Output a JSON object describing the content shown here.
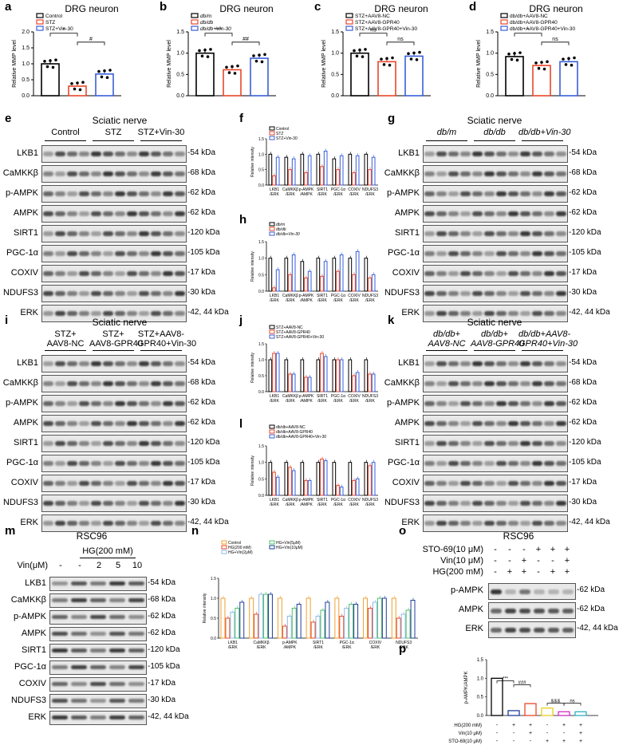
{
  "panels": {
    "a": {
      "label": "a",
      "title": "DRG neuron",
      "ylabel": "Relative MMP level",
      "legend": [
        "Control",
        "STZ",
        "STZ+Vin-30"
      ],
      "sig": [
        "*",
        "#"
      ],
      "means": [
        1.0,
        0.3,
        0.68
      ],
      "ylim": [
        0,
        2.0
      ],
      "yticks": [
        "0.0",
        "0.5",
        "1.0",
        "1.5",
        "2.0"
      ]
    },
    "b": {
      "label": "b",
      "title": "DRG neuron",
      "ylabel": "Relative MMP level",
      "legend": [
        "db/m",
        "db/db",
        "db/db+Vin-30"
      ],
      "sig": [
        "***",
        "##"
      ],
      "means": [
        1.0,
        0.61,
        0.88
      ],
      "ylim": [
        0,
        1.5
      ],
      "yticks": [
        "0.0",
        "0.5",
        "1.0",
        "1.5"
      ]
    },
    "c": {
      "label": "c",
      "title": "DRG neuron",
      "ylabel": "Relative MMP level",
      "legend": [
        "STZ+AAV8-NC",
        "STZ+AAV8-GPR40",
        "STZ+AAV8-GPR40+Vin-30"
      ],
      "sig": [
        "ns",
        "ns"
      ],
      "means": [
        1.0,
        0.8,
        0.93
      ],
      "ylim": [
        0,
        1.5
      ],
      "yticks": [
        "0.0",
        "0.5",
        "1.0",
        "1.5"
      ]
    },
    "d": {
      "label": "d",
      "title": "DRG neuron",
      "ylabel": "Relative MMP level",
      "legend": [
        "db/db+AAV8-NC",
        "db/db+AAV8-GPR40",
        "db/db+AAV8-GPR40+Vin-30"
      ],
      "sig": [
        "*",
        "ns"
      ],
      "means": [
        0.92,
        0.71,
        0.8
      ],
      "ylim": [
        0,
        1.5
      ],
      "yticks": [
        "0.0",
        "0.5",
        "1.0",
        "1.5"
      ]
    },
    "e": {
      "label": "e",
      "title": "Sciatic nerve",
      "groups": [
        "Control",
        "STZ",
        "STZ+Vin-30"
      ],
      "rows": [
        "LKB1",
        "CaMKKβ",
        "p-AMPK",
        "AMPK",
        "SIRT1",
        "PGC-1α",
        "COXIV",
        "NDUFS3",
        "ERK"
      ],
      "kda": [
        "-54 kDa",
        "-68 kDa",
        "-62 kDa",
        "-62 kDa",
        "-120 kDa",
        "-105 kDa",
        "-17 kDa",
        "-30 kDa",
        "-42, 44 kDa"
      ]
    },
    "f": {
      "label": "f",
      "ylabel": "Relative intensity",
      "legend": [
        "Control",
        "STZ",
        "STZ+Vin-30"
      ],
      "categories": [
        "LKB1\n/ERK",
        "CaMKKβ\n/ERK",
        "p-AMPK\n/AMPK",
        "SIRT1\n/ERK",
        "PGC-1α\n/ERK",
        "COXIV\n/ERK",
        "NDUFS3\n/ERK"
      ]
    },
    "g": {
      "label": "g",
      "title": "Sciatic nerve",
      "groups": [
        "db/m",
        "db/db",
        "db/db+Vin-30"
      ],
      "rows": [
        "LKB1",
        "CaMKKβ",
        "p-AMPK",
        "AMPK",
        "SIRT1",
        "PGC-1α",
        "COXIV",
        "NDUFS3",
        "ERK"
      ],
      "kda": [
        "-54 kDa",
        "-68 kDa",
        "-62 kDa",
        "-62 kDa",
        "-120 kDa",
        "-105 kDa",
        "-17 kDa",
        "-30 kDa",
        "-42, 44 kDa"
      ]
    },
    "h": {
      "label": "h",
      "ylabel": "Relative intensity",
      "legend": [
        "db/m",
        "db/db",
        "db/db+Vin-30"
      ],
      "categories": [
        "LKB1\n/ERK",
        "CaMKKβ\n/ERK",
        "p-AMPK\n/AMPK",
        "SIRT1\n/ERK",
        "PGC-1α\n/ERK",
        "COXIV\n/ERK",
        "NDUFS3\n/ERK"
      ]
    },
    "i": {
      "label": "i",
      "title": "Sciatic nerve",
      "groups": [
        "STZ+\nAAV8-NC",
        "STZ+\nAAV8-GPR40",
        "STZ+AAV8-\nGPR40+Vin-30"
      ],
      "rows": [
        "LKB1",
        "CaMKKβ",
        "p-AMPK",
        "AMPK",
        "SIRT1",
        "PGC-1α",
        "COXIV",
        "NDUFS3",
        "ERK"
      ],
      "kda": [
        "-54 kDa",
        "-68 kDa",
        "-62 kDa",
        "-62 kDa",
        "-120 kDa",
        "-105 kDa",
        "-17 kDa",
        "-30 kDa",
        "-42, 44 kDa"
      ]
    },
    "j": {
      "label": "j",
      "ylabel": "Relative intensity",
      "legend": [
        "STZ+AAV8-NC",
        "STZ+AAV8-GPR40",
        "STZ+AAV8-GPR40+Vin-30"
      ],
      "categories": [
        "LKB1\n/ERK",
        "CaMKKβ\n/ERK",
        "p-AMPK\n/AMPK",
        "SIRT1\n/ERK",
        "PGC-1α\n/ERK",
        "COXIV\n/ERK",
        "NDUFS3\n/ERK"
      ]
    },
    "k": {
      "label": "k",
      "title": "Sciatic nerve",
      "groups": [
        "db/db+\nAAV8-NC",
        "db/db+\nAAV8-GPR40",
        "db/db+AAV8-\nGPR40+Vin-30"
      ],
      "rows": [
        "LKB1",
        "CaMKKβ",
        "p-AMPK",
        "AMPK",
        "SIRT1",
        "PGC-1α",
        "COXIV",
        "NDUFS3",
        "ERK"
      ],
      "kda": [
        "-54 kDa",
        "-68 kDa",
        "-62 kDa",
        "-62 kDa",
        "-120 kDa",
        "-105 kDa",
        "-17 kDa",
        "-30 kDa",
        "-42, 44 kDa"
      ]
    },
    "l": {
      "label": "l",
      "ylabel": "Relative intensity",
      "legend": [
        "db/db+AAV8-NC",
        "db/db+AAV8-GPR40",
        "db/db+AAV8-GPR40+Vin-30"
      ],
      "categories": [
        "LKB1\n/ERK",
        "CaMKKβ\n/ERK",
        "p-AMPK\n/AMPK",
        "SIRT1\n/ERK",
        "PGC-1α\n/ERK",
        "COXIV\n/ERK",
        "NDUFS3\n/ERK"
      ]
    },
    "m": {
      "label": "m",
      "title": "RSC96",
      "hg": "HG(200 mM)",
      "vin": "Vin(μM)",
      "lanes": [
        "-",
        "-",
        "2",
        "5",
        "10"
      ],
      "rows": [
        "LKB1",
        "CaMKKβ",
        "p-AMPK",
        "AMPK",
        "SIRT1",
        "PGC-1α",
        "COXIV",
        "NDUFS3",
        "ERK"
      ],
      "kda": [
        "-54 kDa",
        "-68 kDa",
        "-62 kDa",
        "-62 kDa",
        "-120 kDa",
        "-105 kDa",
        "-17 kDa",
        "-30 kDa",
        "-42, 44 kDa"
      ]
    },
    "n": {
      "label": "n",
      "ylabel": "Relative intensity",
      "legend": [
        "Control",
        "HG(200 mM)",
        "HG+Vin(2μM)",
        "HG+Vin(5μM)",
        "HG+Vin(10μM)"
      ],
      "categories": [
        "LKB1\n/ERK",
        "CaMKKβ\n/ERK",
        "p-AMPK\n/AMPK",
        "SIRT1\n/ERK",
        "PGC-1α\n/ERK",
        "COXIV\n/ERK",
        "NDUFS3\n/ERK"
      ]
    },
    "o": {
      "label": "o",
      "title": "RSC96",
      "conds": [
        "STO-69(10 μM)",
        "Vin(10 μM)",
        "HG(200 mM)"
      ],
      "marks": [
        [
          "-",
          "-",
          "-",
          "+",
          "+",
          "+"
        ],
        [
          "-",
          "-",
          "+",
          "-",
          "-",
          "+"
        ],
        [
          "-",
          "+",
          "+",
          "-",
          "+",
          "+"
        ]
      ],
      "rows": [
        "p-AMPK",
        "AMPK",
        "ERK"
      ],
      "kda": [
        "-62 kDa",
        "-62 kDa",
        "-42, 44 kDa"
      ]
    },
    "p": {
      "label": "p",
      "ylabel": "p-AMPK/AMPK",
      "conds": [
        "HG(200 mM)",
        "Vin(10 μM)",
        "STO-69(10 μM)"
      ],
      "marks": [
        [
          "-",
          "+",
          "+",
          "-",
          "+",
          "+"
        ],
        [
          "-",
          "-",
          "+",
          "-",
          "-",
          "+"
        ],
        [
          "-",
          "-",
          "-",
          "+",
          "+",
          "+"
        ]
      ],
      "sig": [
        "***",
        "###",
        "&&&",
        "ns"
      ],
      "ylim": [
        0,
        1.5
      ],
      "yticks": [
        "0.0",
        "0.5",
        "1.0",
        "1.5"
      ],
      "values": [
        1.0,
        0.13,
        0.32,
        0.2,
        0.1,
        0.1
      ]
    }
  },
  "colors": {
    "black": "#000000",
    "red": "#e8472b",
    "blue": "#3a5fd9",
    "lightblue": "#8fb8e8",
    "green": "#4fbf6a",
    "navy": "#1f3d99",
    "orange": "#f0a030",
    "yellow": "#e8d020",
    "magenta": "#d030c0",
    "teal": "#30b0c0"
  }
}
